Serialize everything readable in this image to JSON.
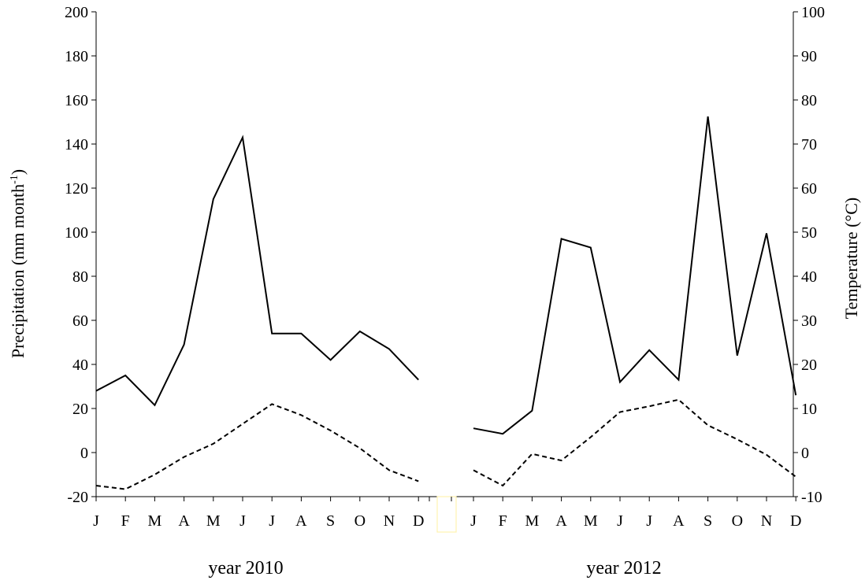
{
  "chart_data": {
    "type": "line",
    "months": [
      "J",
      "F",
      "M",
      "A",
      "M",
      "J",
      "J",
      "A",
      "S",
      "O",
      "N",
      "D"
    ],
    "panels": [
      {
        "label": "year 2010",
        "precipitation": [
          28,
          35,
          21.5,
          49,
          115,
          143,
          54,
          54,
          42,
          55,
          47,
          33
        ],
        "temperature": [
          -7.5,
          -8.3,
          -5.0,
          -1.0,
          2.0,
          6.5,
          11.0,
          8.5,
          5.0,
          1.0,
          -4.0,
          -6.5
        ]
      },
      {
        "label": "year 2012",
        "precipitation": [
          11,
          8.5,
          19,
          97,
          93,
          32,
          46.5,
          33,
          152.5,
          44,
          99.5,
          26
        ],
        "temperature": [
          -4.0,
          -7.5,
          -0.3,
          -1.8,
          3.5,
          9.2,
          10.5,
          12.0,
          6.2,
          3.0,
          -0.5,
          -5.5
        ]
      }
    ],
    "series": [
      {
        "key": "precipitation",
        "style": "solid",
        "axis": "left"
      },
      {
        "key": "temperature",
        "style": "dashed",
        "axis": "right"
      }
    ],
    "ylabel_left": "Precipitation (mm month",
    "ylabel_left_superscript": "-1",
    "ylabel_left_close": ")",
    "ylabel_right": "Temperature (°C)",
    "ylim_left": [
      -20,
      200
    ],
    "ylim_right": [
      -10,
      100
    ],
    "yticks_left": [
      -20,
      0,
      20,
      40,
      60,
      80,
      100,
      120,
      140,
      160,
      180,
      200
    ],
    "yticks_right": [
      -10,
      0,
      10,
      20,
      30,
      40,
      50,
      60,
      70,
      80,
      90,
      100
    ],
    "grid": false,
    "legend": "none",
    "gap_marker_color": "#fff2b0",
    "line_color": "#000000"
  }
}
